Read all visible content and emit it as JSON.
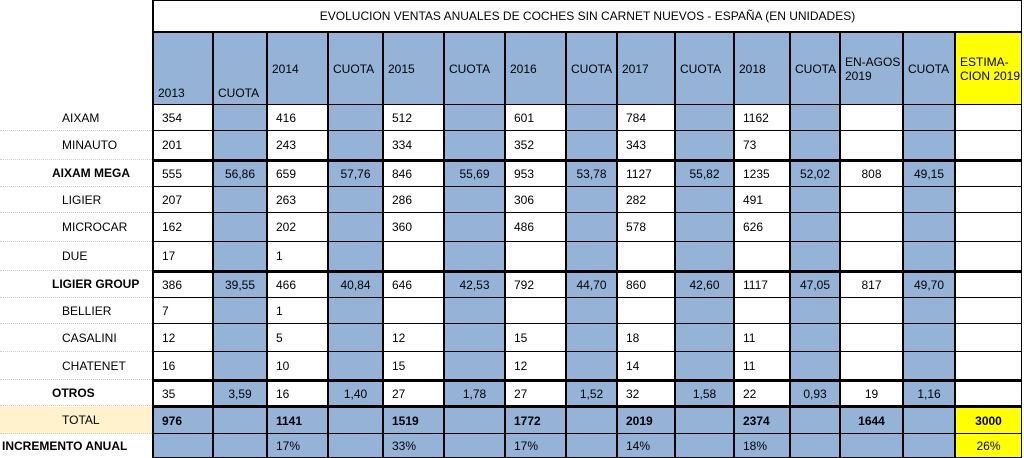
{
  "title": "EVOLUCION VENTAS ANUALES DE COCHES SIN CARNET NUEVOS - ESPAÑA (EN UNIDADES)",
  "headers": [
    [
      "2013"
    ],
    [
      "CUOTA"
    ],
    [
      "2014"
    ],
    [
      "CUOTA"
    ],
    [
      "2015"
    ],
    [
      "CUOTA"
    ],
    [
      "2016"
    ],
    [
      "CUOTA"
    ],
    [
      "2017"
    ],
    [
      "CUOTA"
    ],
    [
      "2018"
    ],
    [
      "CUOTA"
    ],
    [
      "EN-AGOS",
      "2019"
    ],
    [
      "CUOTA"
    ],
    [
      "ESTIMA-",
      "CION 2019"
    ]
  ],
  "rows": [
    {
      "label": "AIXAM",
      "cells": [
        "354",
        null,
        "416",
        null,
        "512",
        null,
        "601",
        null,
        "784",
        null,
        "1162",
        null,
        null,
        null,
        null
      ]
    },
    {
      "label": "MINAUTO",
      "cells": [
        "201",
        null,
        "243",
        null,
        "334",
        null,
        "352",
        null,
        "343",
        null,
        "73",
        null,
        null,
        null,
        null
      ]
    },
    {
      "label": "AIXAM MEGA",
      "cells": [
        "555",
        "56,86",
        "659",
        "57,76",
        "846",
        "55,69",
        "953",
        "53,78",
        "1127",
        "55,82",
        "1235",
        "52,02",
        "808",
        "49,15",
        null
      ]
    },
    {
      "label": "LIGIER",
      "cells": [
        "207",
        null,
        "263",
        null,
        "286",
        null,
        "306",
        null,
        "282",
        null,
        "491",
        null,
        null,
        null,
        null
      ]
    },
    {
      "label": "MICROCAR",
      "cells": [
        "162",
        null,
        "202",
        null,
        "360",
        null,
        "486",
        null,
        "578",
        null,
        "626",
        null,
        null,
        null,
        null
      ]
    },
    {
      "label": "DUE",
      "cells": [
        "17",
        null,
        "1",
        null,
        null,
        null,
        null,
        null,
        null,
        null,
        null,
        null,
        null,
        null,
        null
      ]
    },
    {
      "label": "LIGIER GROUP",
      "cells": [
        "386",
        "39,55",
        "466",
        "40,84",
        "646",
        "42,53",
        "792",
        "44,70",
        "860",
        "42,60",
        "1117",
        "47,05",
        "817",
        "49,70",
        null
      ]
    },
    {
      "label": "BELLIER",
      "cells": [
        "7",
        null,
        "1",
        null,
        null,
        null,
        null,
        null,
        null,
        null,
        null,
        null,
        null,
        null,
        null
      ]
    },
    {
      "label": "CASALINI",
      "cells": [
        "12",
        null,
        "5",
        null,
        "12",
        null,
        "15",
        null,
        "18",
        null,
        "11",
        null,
        null,
        null,
        null
      ]
    },
    {
      "label": "CHATENET",
      "cells": [
        "16",
        null,
        "10",
        null,
        "15",
        null,
        "12",
        null,
        "14",
        null,
        "11",
        null,
        null,
        null,
        null
      ]
    },
    {
      "label": "OTROS",
      "cells": [
        "35",
        "3,59",
        "16",
        "1,40",
        "27",
        "1,78",
        "27",
        "1,52",
        "32",
        "1,58",
        "22",
        "0,93",
        "19",
        "1,16",
        null
      ]
    },
    {
      "label": "TOTAL",
      "cells": [
        "976",
        null,
        "1141",
        null,
        "1519",
        null,
        "1772",
        null,
        "2019",
        null,
        "2374",
        null,
        "1644",
        null,
        "3000"
      ]
    },
    {
      "label": "INCREMENTO ANUAL",
      "cells": [
        null,
        null,
        "17%",
        null,
        "33%",
        null,
        "17%",
        null,
        "14%",
        null,
        "18%",
        null,
        null,
        null,
        "26%"
      ]
    }
  ]
}
